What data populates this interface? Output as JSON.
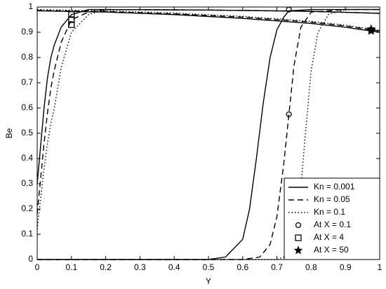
{
  "chart_data": {
    "type": "line",
    "xlabel": "Y",
    "ylabel": "Be",
    "xlim": [
      0,
      1
    ],
    "ylim": [
      0,
      1
    ],
    "xticks": [
      0,
      0.1,
      0.2,
      0.3,
      0.4,
      0.5,
      0.6,
      0.7,
      0.8,
      0.9,
      1
    ],
    "yticks": [
      0,
      0.1,
      0.2,
      0.3,
      0.4,
      0.5,
      0.6,
      0.7,
      0.8,
      0.9,
      1
    ],
    "color": "#000000",
    "legend": "lower right",
    "series": [
      {
        "name": "Kn = 0.001",
        "dash": "solid",
        "curves": [
          {
            "x": [
              0,
              0.5,
              0.55,
              0.6,
              0.62,
              0.64,
              0.66,
              0.68,
              0.7,
              0.72,
              0.735,
              0.8,
              0.9,
              1
            ],
            "values": [
              0,
              0,
              0.01,
              0.08,
              0.2,
              0.4,
              0.62,
              0.8,
              0.91,
              0.96,
              0.985,
              0.99,
              0.99,
              0.99
            ]
          },
          {
            "x": [
              0,
              0.01,
              0.02,
              0.03,
              0.04,
              0.05,
              0.07,
              0.1,
              0.15,
              0.2,
              0.5,
              0.8,
              1
            ],
            "values": [
              0.3,
              0.45,
              0.6,
              0.72,
              0.8,
              0.85,
              0.92,
              0.97,
              0.99,
              0.99,
              0.988,
              0.983,
              0.975
            ]
          },
          {
            "x": [
              0,
              0.2,
              0.4,
              0.6,
              0.8,
              0.9,
              1
            ],
            "values": [
              0.985,
              0.98,
              0.97,
              0.955,
              0.935,
              0.92,
              0.9
            ]
          }
        ]
      },
      {
        "name": "Kn = 0.05",
        "dash": "dashed",
        "curves": [
          {
            "x": [
              0,
              0.6,
              0.65,
              0.68,
              0.7,
              0.72,
              0.735,
              0.75,
              0.77,
              0.8,
              0.9,
              1
            ],
            "values": [
              0,
              0,
              0.01,
              0.06,
              0.17,
              0.38,
              0.575,
              0.77,
              0.92,
              0.98,
              0.99,
              0.99
            ]
          },
          {
            "x": [
              0,
              0.01,
              0.02,
              0.03,
              0.04,
              0.05,
              0.07,
              0.1,
              0.15,
              0.2,
              0.5,
              0.8,
              1
            ],
            "values": [
              0.18,
              0.32,
              0.46,
              0.58,
              0.68,
              0.75,
              0.86,
              0.95,
              0.98,
              0.99,
              0.988,
              0.983,
              0.975
            ]
          },
          {
            "x": [
              0,
              0.2,
              0.4,
              0.6,
              0.8,
              0.9,
              1
            ],
            "values": [
              0.987,
              0.982,
              0.973,
              0.96,
              0.94,
              0.925,
              0.905
            ]
          }
        ]
      },
      {
        "name": "Kn = 0.1",
        "dash": "dotted",
        "curves": [
          {
            "x": [
              0,
              0.7,
              0.74,
              0.76,
              0.78,
              0.8,
              0.82,
              0.85,
              0.9,
              1
            ],
            "values": [
              0,
              0,
              0.02,
              0.12,
              0.45,
              0.75,
              0.9,
              0.97,
              0.99,
              0.99
            ]
          },
          {
            "x": [
              0,
              0.01,
              0.02,
              0.03,
              0.04,
              0.05,
              0.07,
              0.1,
              0.15,
              0.2,
              0.5,
              0.8,
              1
            ],
            "values": [
              0.12,
              0.24,
              0.36,
              0.46,
              0.54,
              0.6,
              0.76,
              0.9,
              0.97,
              0.99,
              0.988,
              0.983,
              0.975
            ]
          },
          {
            "x": [
              0,
              0.2,
              0.4,
              0.6,
              0.8,
              0.9,
              1
            ],
            "values": [
              0.99,
              0.985,
              0.976,
              0.963,
              0.943,
              0.928,
              0.908
            ]
          }
        ]
      }
    ],
    "markers": [
      {
        "name": "At X = 0.1",
        "symbol": "circle",
        "x": [
          0.735,
          0.735
        ],
        "values": [
          0.99,
          0.575
        ]
      },
      {
        "name": "At X = 4",
        "symbol": "square",
        "x": [
          0.1,
          0.1,
          0.1
        ],
        "values": [
          0.97,
          0.95,
          0.93
        ]
      },
      {
        "name": "At X = 50",
        "symbol": "star",
        "x": [
          0.975,
          0.975,
          0.975
        ],
        "values": [
          0.905,
          0.91,
          0.913
        ]
      }
    ]
  }
}
